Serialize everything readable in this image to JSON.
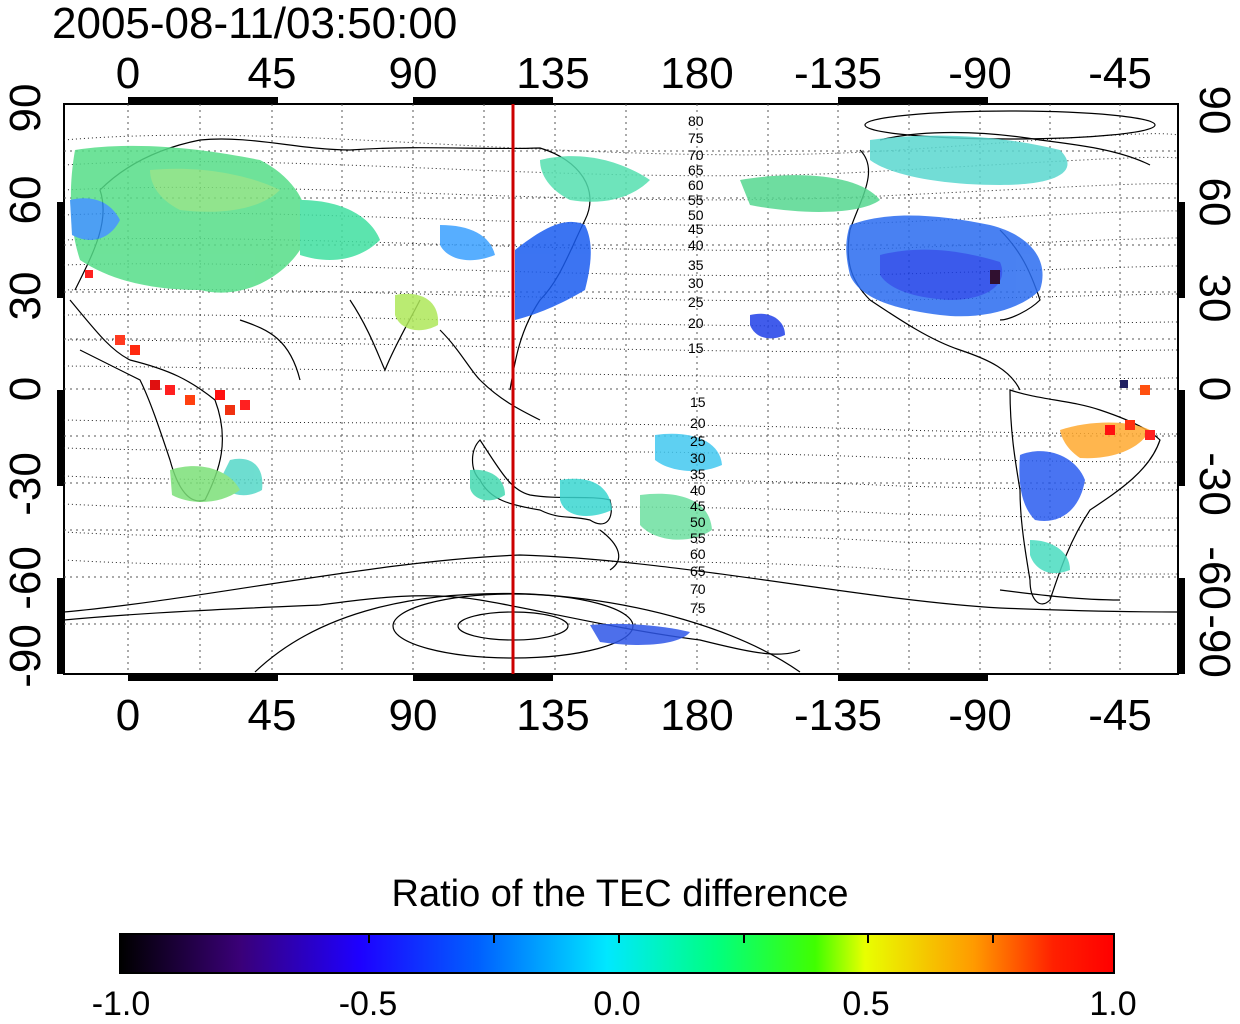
{
  "timestamp": "2005-08-11/03:50:00",
  "map": {
    "top_lon_labels": [
      "0",
      "45",
      "90",
      "135",
      "180",
      "-135",
      "-90",
      "-45"
    ],
    "bottom_lon_labels": [
      "0",
      "45",
      "90",
      "135",
      "180",
      "-135",
      "-90",
      "-45"
    ],
    "left_lat_labels": [
      "90",
      "60",
      "30",
      "0",
      "-30",
      "-60",
      "-90"
    ],
    "right_lat_labels": [
      "90",
      "60",
      "30",
      "0",
      "-30",
      "-60",
      "-90"
    ],
    "north_contour_labels": [
      "80",
      "75",
      "70",
      "65",
      "60",
      "55",
      "50",
      "45",
      "40",
      "35",
      "30",
      "25",
      "20",
      "15"
    ],
    "south_contour_labels": [
      "15",
      "20",
      "25",
      "30",
      "35",
      "40",
      "45",
      "50",
      "55",
      "60",
      "65",
      "70",
      "75"
    ],
    "meridian_line_color": "#cc0000"
  },
  "colorbar": {
    "title": "Ratio of the TEC difference",
    "tick_labels": [
      "-1.0",
      "-0.5",
      "0.0",
      "0.5",
      "1.0"
    ],
    "range": [
      -1.0,
      1.0
    ]
  }
}
